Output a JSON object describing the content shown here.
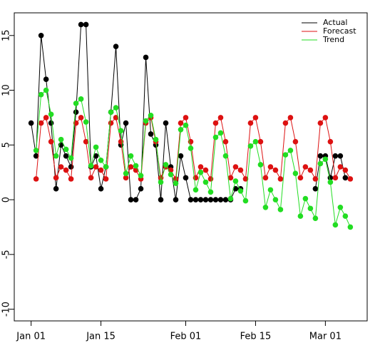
{
  "chart_data": {
    "type": "line",
    "x": [
      "Jan 01",
      "Jan 02",
      "Jan 03",
      "Jan 04",
      "Jan 05",
      "Jan 06",
      "Jan 07",
      "Jan 08",
      "Jan 09",
      "Jan 10",
      "Jan 11",
      "Jan 12",
      "Jan 13",
      "Jan 14",
      "Jan 15",
      "Jan 16",
      "Jan 17",
      "Jan 18",
      "Jan 19",
      "Jan 20",
      "Jan 21",
      "Jan 22",
      "Jan 23",
      "Jan 24",
      "Jan 25",
      "Jan 26",
      "Jan 27",
      "Jan 28",
      "Jan 29",
      "Jan 30",
      "Jan 31",
      "Feb 01",
      "Feb 02",
      "Feb 03",
      "Feb 04",
      "Feb 05",
      "Feb 06",
      "Feb 07",
      "Feb 08",
      "Feb 09",
      "Feb 10",
      "Feb 11",
      "Feb 12",
      "Feb 13",
      "Feb 14",
      "Feb 15",
      "Feb 16",
      "Feb 17",
      "Feb 18",
      "Feb 19",
      "Feb 20",
      "Feb 21",
      "Feb 22",
      "Feb 23",
      "Feb 24",
      "Feb 25",
      "Feb 26",
      "Feb 27",
      "Feb 28",
      "Mar 01",
      "Mar 02",
      "Mar 03",
      "Mar 04",
      "Mar 05",
      "Mar 06"
    ],
    "series": [
      {
        "name": "Actual",
        "color": "#000000",
        "values": [
          7,
          4,
          15,
          11,
          7,
          1,
          5,
          4,
          3,
          8,
          16,
          16,
          3,
          4,
          1,
          3,
          8,
          14,
          5,
          7,
          0,
          0,
          1,
          13,
          6,
          5,
          0,
          7,
          3,
          0,
          4,
          2,
          0,
          0,
          0,
          0,
          0,
          0,
          0,
          0,
          0,
          1,
          1,
          null,
          null,
          null,
          null,
          null,
          null,
          null,
          null,
          null,
          null,
          null,
          null,
          null,
          null,
          1,
          4,
          4,
          2,
          4,
          4,
          2,
          null
        ]
      },
      {
        "name": "Forecast",
        "color": "#dd1111",
        "values": [
          null,
          1.9,
          7,
          7.5,
          5.3,
          2,
          3,
          2.7,
          1.9,
          7,
          7.5,
          5.3,
          2,
          3,
          2.7,
          1.9,
          7,
          7.5,
          5.3,
          2,
          3,
          2.7,
          1.9,
          7,
          7.5,
          5.3,
          2,
          3,
          2.7,
          1.9,
          7,
          7.5,
          5.3,
          2,
          3,
          2.7,
          1.9,
          7,
          7.5,
          5.3,
          2,
          3,
          2.7,
          1.9,
          7,
          7.5,
          5.3,
          2,
          3,
          2.7,
          1.9,
          7,
          7.5,
          5.3,
          2,
          3,
          2.7,
          1.9,
          7,
          7.5,
          5.3,
          2,
          3,
          2.7,
          1.9
        ]
      },
      {
        "name": "Trend",
        "color": "#22dd22",
        "values": [
          null,
          4.5,
          9.6,
          10,
          7.8,
          4,
          5.5,
          4.6,
          3.8,
          8.8,
          9.2,
          7.1,
          3.1,
          4.8,
          3.6,
          3,
          8,
          8.4,
          6.3,
          2.4,
          4,
          3.1,
          2.2,
          7.2,
          7.7,
          5.5,
          1.6,
          3.2,
          2.3,
          1.5,
          6.4,
          6.8,
          4.7,
          0.9,
          2.5,
          1.6,
          0.7,
          5.7,
          6.1,
          4,
          0.1,
          1.7,
          0.8,
          -0.1,
          4.9,
          5.3,
          3.2,
          -0.7,
          0.9,
          0,
          -0.9,
          4.1,
          4.5,
          2.4,
          -1.5,
          0.1,
          -0.8,
          -1.7,
          3.3,
          3.7,
          1.6,
          -2.3,
          -0.7,
          -1.5,
          -2.5
        ]
      }
    ],
    "xticks": [
      "Jan 01",
      "Jan 15",
      "Feb 01",
      "Feb 15",
      "Mar 01"
    ],
    "ylim": [
      -11.07,
      17.07
    ],
    "yticks": [
      -10,
      -5,
      0,
      5,
      10,
      15
    ],
    "legend": "topright"
  }
}
